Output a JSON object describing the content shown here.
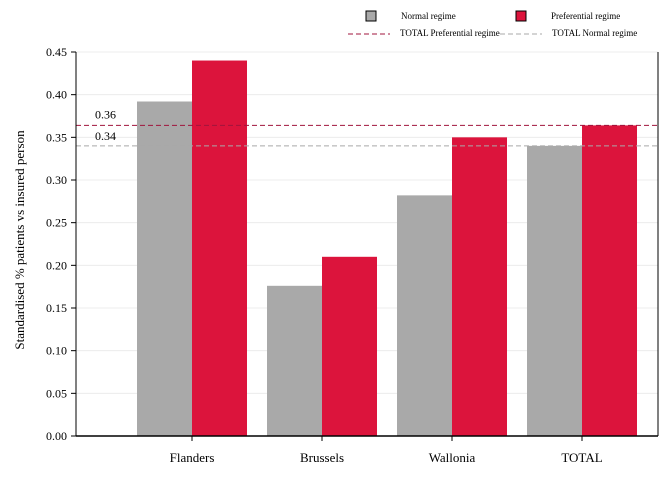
{
  "chart_data": {
    "type": "bar",
    "categories": [
      "Flanders",
      "Brussels",
      "Wallonia",
      "TOTAL"
    ],
    "series": [
      {
        "name": "Normal regime",
        "values": [
          0.392,
          0.176,
          0.282,
          0.34
        ],
        "color": "#a9a9a9"
      },
      {
        "name": "Preferential regime",
        "values": [
          0.44,
          0.21,
          0.35,
          0.364
        ],
        "color": "#dc143c"
      }
    ],
    "reference_lines": [
      {
        "name": "TOTAL Normal regime",
        "value": 0.34,
        "label": "0.34",
        "color": "#a9a9a9"
      },
      {
        "name": "TOTAL Preferential regime",
        "value": 0.364,
        "label": "0.36",
        "color": "#a0143c"
      }
    ],
    "ylabel": "Standardised % patients vs insured person",
    "xlabel": "",
    "ylim": [
      0,
      0.45
    ],
    "yticks": [
      "0.00",
      "0.05",
      "0.10",
      "0.15",
      "0.20",
      "0.25",
      "0.30",
      "0.35",
      "0.40",
      "0.45"
    ],
    "grid": true,
    "legend_position": "top"
  }
}
